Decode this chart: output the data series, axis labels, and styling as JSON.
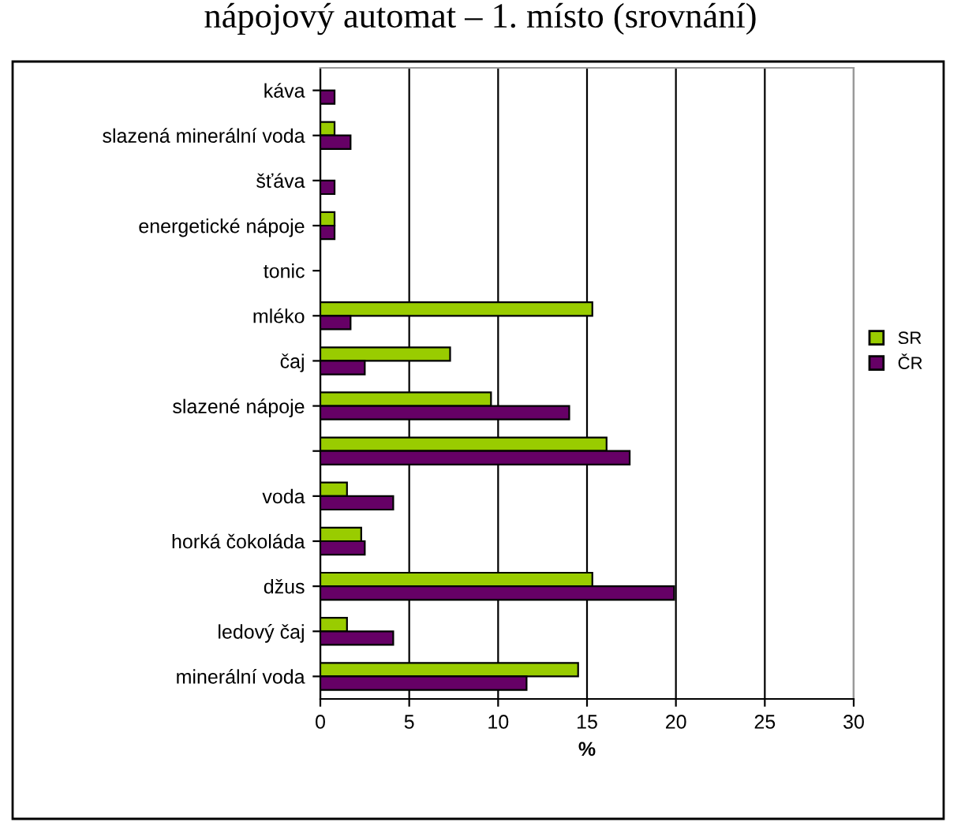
{
  "chart_data": {
    "type": "bar",
    "orientation": "horizontal",
    "title": "nápojový automat – 1. místo (srovnání)",
    "xlabel": "%",
    "categories": [
      "káva",
      "slazená minerální voda",
      "šťáva",
      "energetické nápoje",
      "tonic",
      "mléko",
      "čaj",
      "slazené nápoje",
      null,
      "voda",
      "horká čokoláda",
      "džus",
      "ledový čaj",
      "minerální voda"
    ],
    "series": [
      {
        "name": "SR",
        "color": "#99cc00",
        "values": [
          0,
          0.8,
          0,
          0.8,
          0,
          15.3,
          7.3,
          9.6,
          16.1,
          1.5,
          2.3,
          15.3,
          1.5,
          14.5
        ]
      },
      {
        "name": "ČR",
        "color": "#660066",
        "values": [
          0.8,
          1.7,
          0.8,
          0.8,
          0,
          1.7,
          2.5,
          14.0,
          17.4,
          4.1,
          2.5,
          19.9,
          4.1,
          11.6
        ]
      }
    ],
    "xlim": [
      0,
      30
    ],
    "xticks": [
      0,
      5,
      10,
      15,
      20,
      25,
      30
    ],
    "grid": "x",
    "legend": "right"
  }
}
